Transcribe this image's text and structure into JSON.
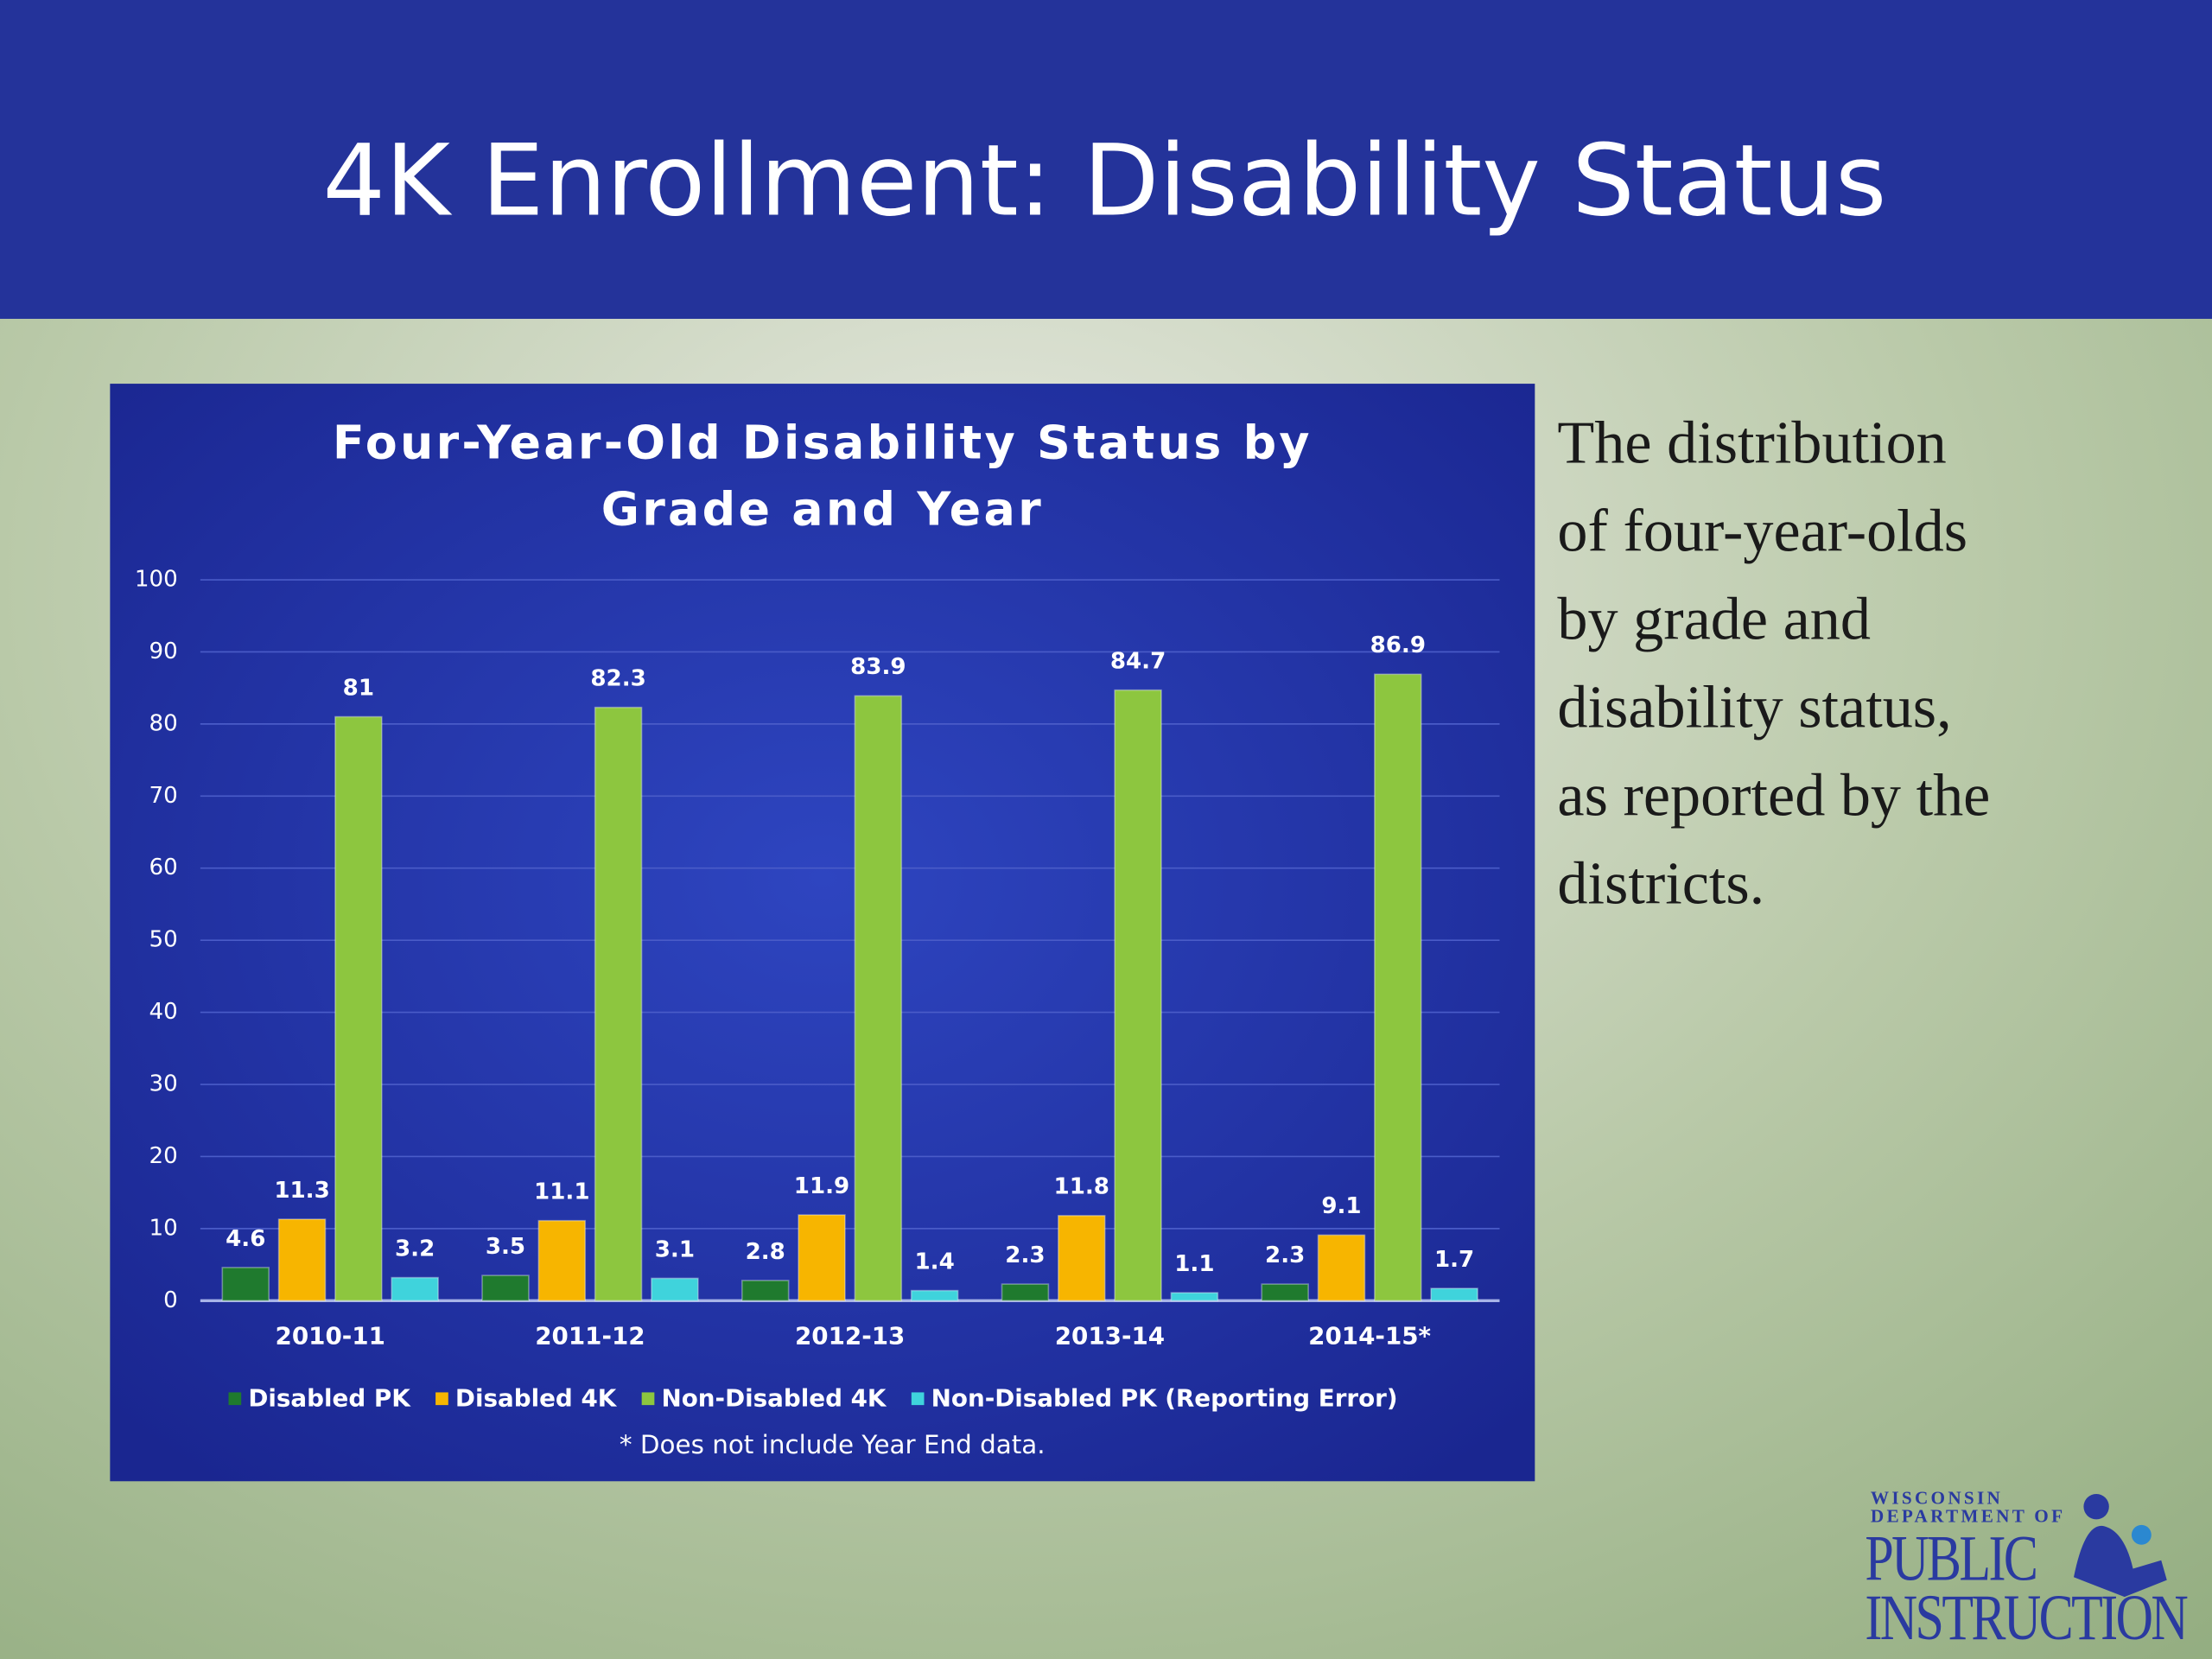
{
  "slide_title": "4K Enrollment: Disability Status",
  "chart_data": {
    "type": "bar",
    "title": [
      "Four-Year-Old Disability Status by",
      "Grade and Year"
    ],
    "categories": [
      "2010-11",
      "2011-12",
      "2012-13",
      "2013-14",
      "2014-15*"
    ],
    "series": [
      {
        "name": "Disabled PK",
        "color": "#1f7a2e",
        "values": [
          4.6,
          3.5,
          2.8,
          2.3,
          2.3
        ]
      },
      {
        "name": "Disabled 4K",
        "color": "#f7b500",
        "values": [
          11.3,
          11.1,
          11.9,
          11.8,
          9.1
        ]
      },
      {
        "name": "Non-Disabled 4K",
        "color": "#8dc63f",
        "values": [
          81,
          82.3,
          83.9,
          84.7,
          86.9
        ]
      },
      {
        "name": "Non-Disabled PK (Reporting Error)",
        "color": "#3fd3dc",
        "values": [
          3.2,
          3.1,
          1.4,
          1.1,
          1.7
        ]
      }
    ],
    "ylim": [
      0,
      100
    ],
    "yticks": [
      0,
      10,
      20,
      30,
      40,
      50,
      60,
      70,
      80,
      90,
      100
    ],
    "grid": true,
    "legend": "bottom",
    "note": "* Does not include Year End data."
  },
  "body_text": [
    "The distribution",
    "of  four-year-olds",
    "by grade and",
    "disability status,",
    "as reported by the",
    "districts."
  ],
  "logo": [
    "WISCONSIN",
    "DEPARTMENT OF",
    "PUBLIC",
    "INSTRUCTION"
  ]
}
